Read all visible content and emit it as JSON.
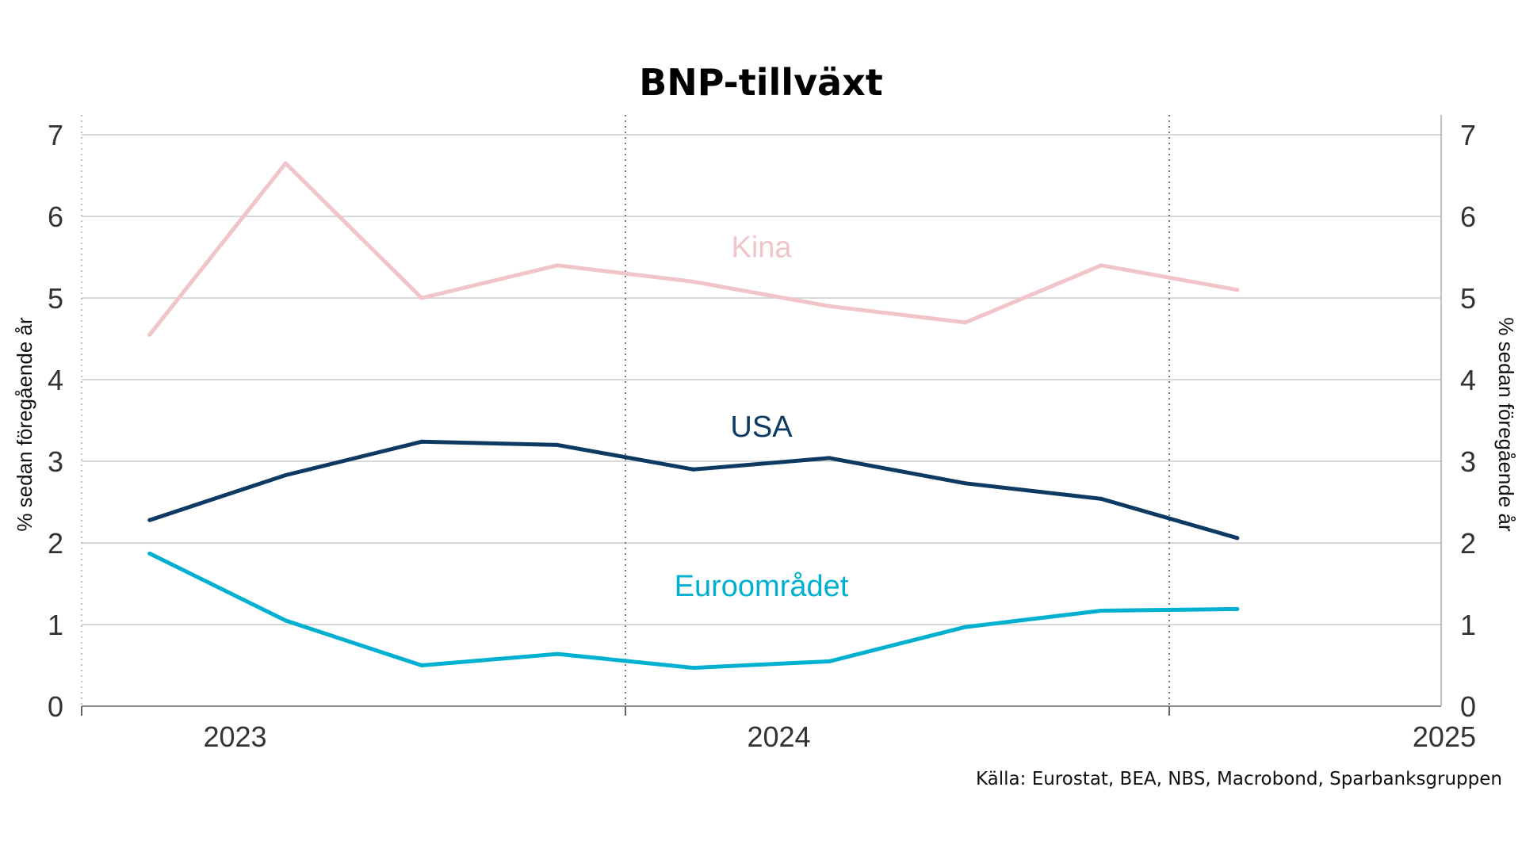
{
  "chart_data": {
    "type": "line",
    "title": "BNP-tillväxt",
    "ylabel_left": "% sedan föregående år",
    "ylabel_right": "% sedan föregående år",
    "ylim": [
      0,
      7
    ],
    "yticks": [
      0,
      1,
      2,
      3,
      4,
      5,
      6,
      7
    ],
    "xlim": [
      2022.75,
      2025.25
    ],
    "xticks": [
      {
        "value": 2023.0,
        "label": "2023"
      },
      {
        "value": 2024.0,
        "label": "2024"
      },
      {
        "value": 2025.0,
        "label": "2025"
      }
    ],
    "boundaries": [
      2022.75,
      2023.75,
      2024.75,
      2025.25
    ],
    "x": [
      2022.875,
      2023.125,
      2023.375,
      2023.625,
      2023.875,
      2024.125,
      2024.375,
      2024.625,
      2024.875
    ],
    "series": [
      {
        "name": "Kina",
        "color": "#f0c4c8",
        "values": [
          4.55,
          6.65,
          5.0,
          5.4,
          5.2,
          4.9,
          4.7,
          5.4,
          5.1
        ],
        "label_pos": [
          2024.0,
          5.5
        ]
      },
      {
        "name": "USA",
        "color": "#0d3a63",
        "values": [
          2.28,
          2.83,
          3.24,
          3.2,
          2.9,
          3.04,
          2.73,
          2.54,
          2.06
        ],
        "label_pos": [
          2024.0,
          3.3
        ]
      },
      {
        "name": "Euroområdet",
        "color": "#00b0d0",
        "values": [
          1.87,
          1.05,
          0.5,
          0.64,
          0.47,
          0.55,
          0.97,
          1.17,
          1.19
        ],
        "label_pos": [
          2024.0,
          1.35
        ]
      }
    ],
    "source": "Källa: Eurostat, BEA, NBS, Macrobond, Sparbanksgruppen"
  }
}
